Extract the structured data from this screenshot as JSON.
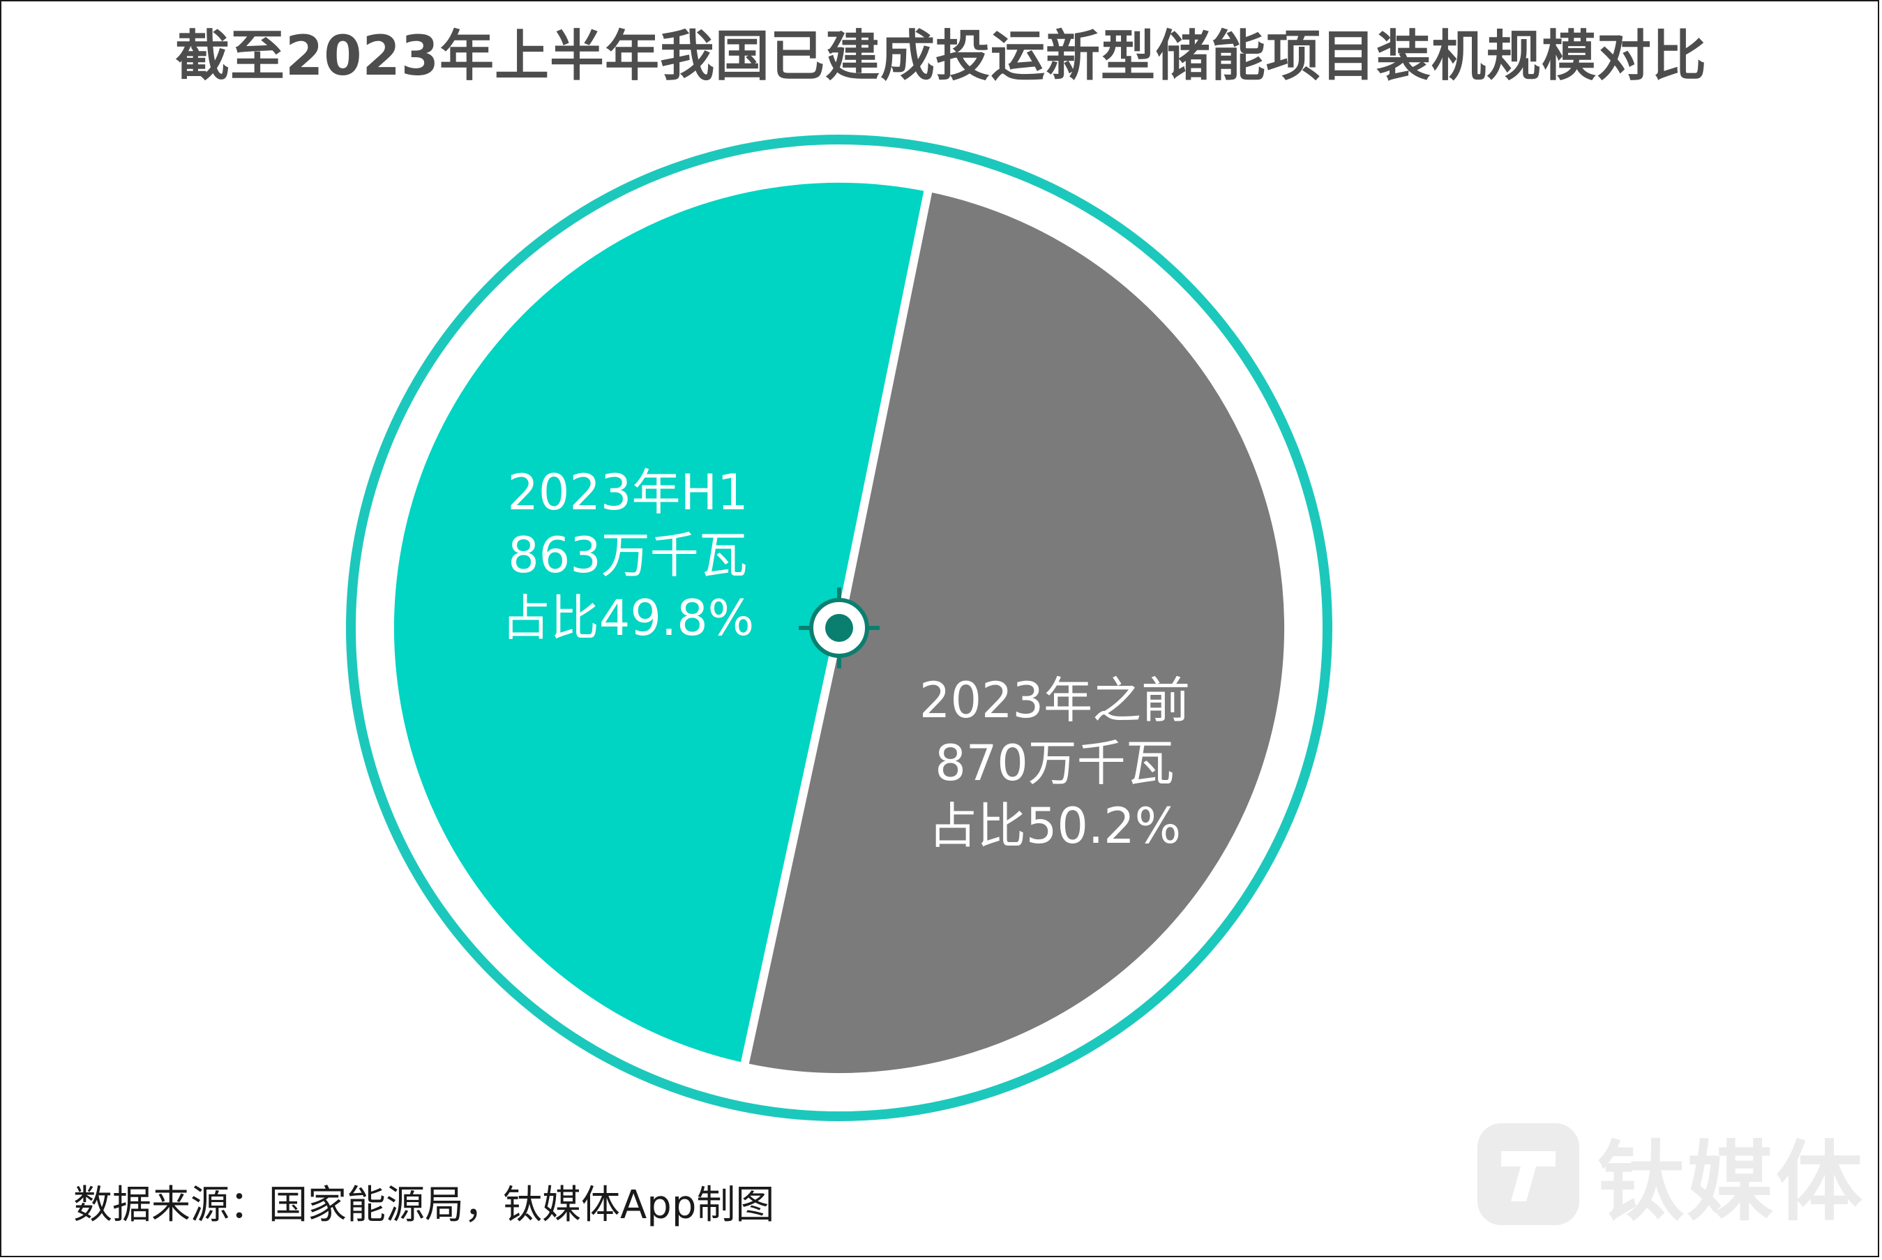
{
  "chart_data": {
    "type": "pie",
    "title": "截至2023年上半年我国已建成投运新型储能项目装机规模对比",
    "slices": [
      {
        "name": "2023年H1",
        "value": 863,
        "value_label": "863万千瓦",
        "share": 49.8,
        "share_label": "占比49.8%",
        "color": "#00d4c2"
      },
      {
        "name": "2023年之前",
        "value": 870,
        "value_label": "870万千瓦",
        "share": 50.2,
        "share_label": "占比50.2%",
        "color": "#7b7b7b"
      }
    ],
    "ring_color": "#1cc8bc",
    "center_marker_color": "#0b7f6f",
    "legend": "none"
  },
  "source_note": "数据来源：国家能源局，钛媒体App制图",
  "watermark": {
    "text": "钛媒体",
    "icon": "titanium-media-logo-icon"
  }
}
